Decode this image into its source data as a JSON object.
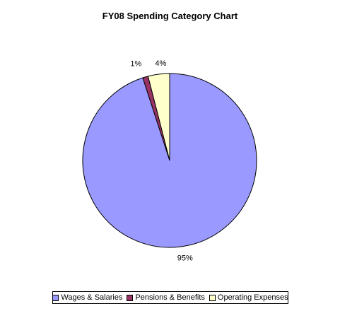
{
  "chart_data": {
    "type": "pie",
    "title": "FY08 Spending Category Chart",
    "categories": [
      "Wages & Salaries",
      "Pensions & Benefits",
      "Operating Expenses"
    ],
    "values": [
      95,
      1,
      4
    ],
    "labels": [
      "95%",
      "1%",
      "4%"
    ],
    "colors": [
      "#9999FF",
      "#993366",
      "#FFFFCC"
    ],
    "legend_position": "bottom"
  }
}
